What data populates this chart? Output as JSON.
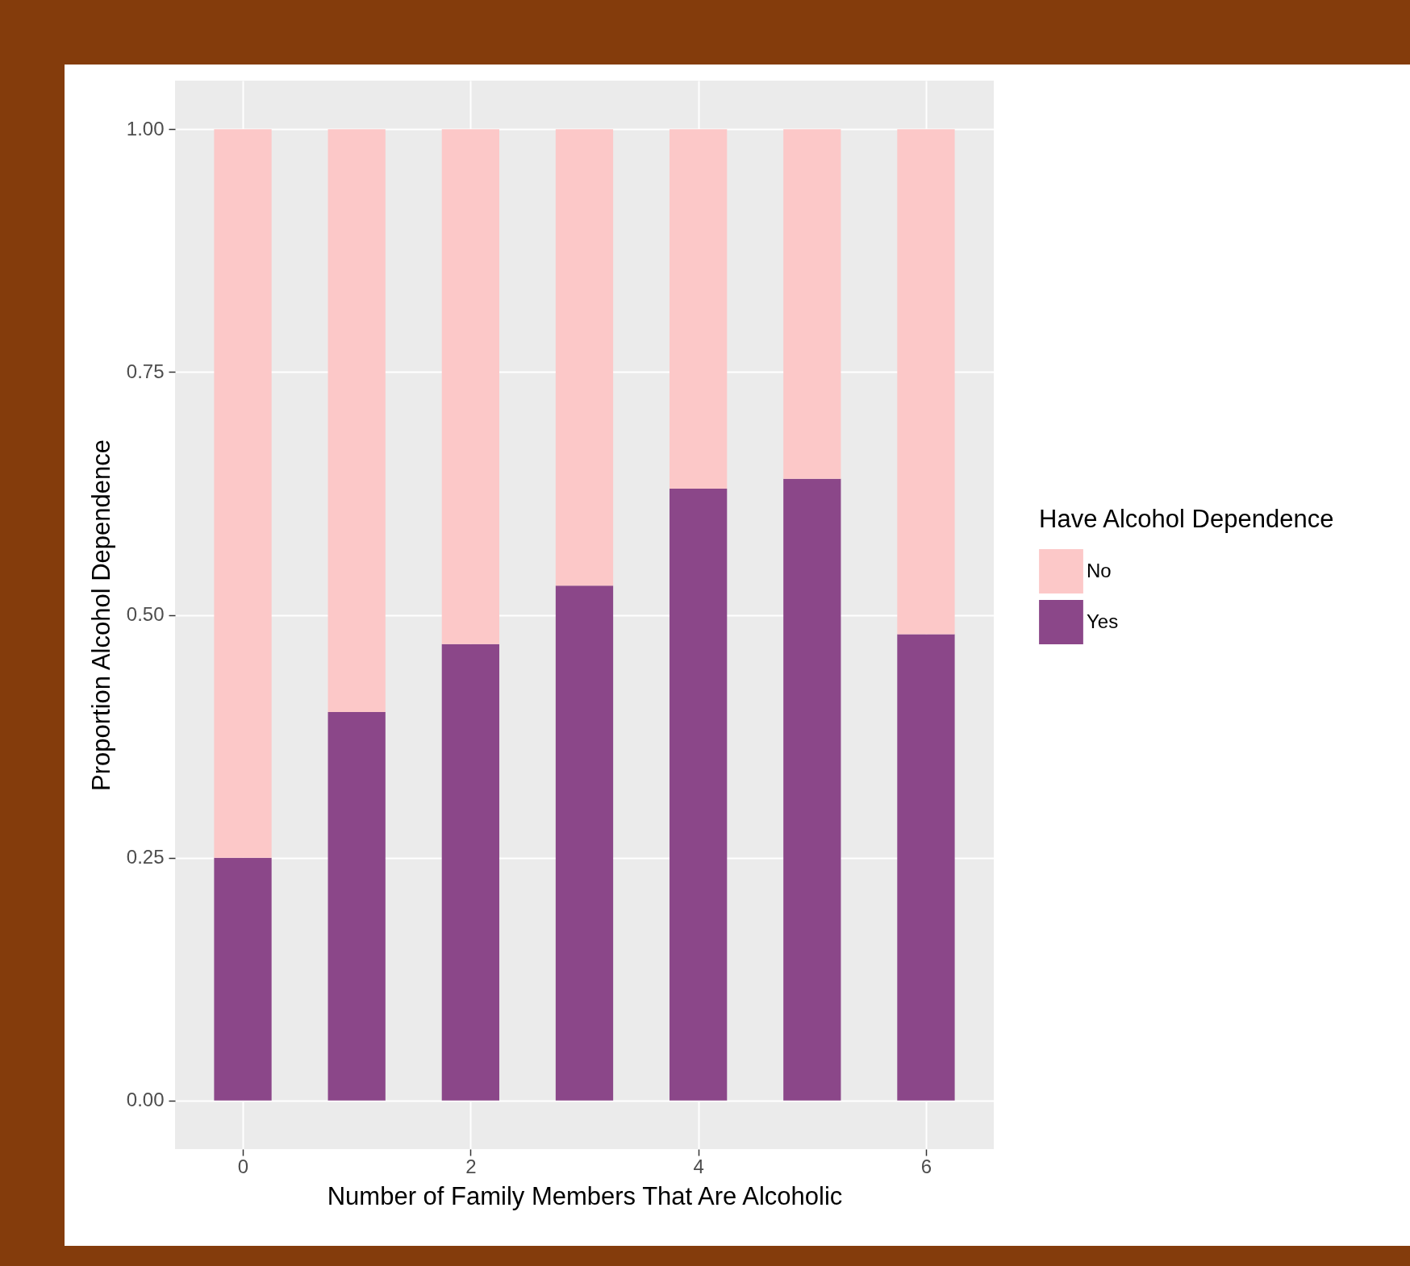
{
  "chart_data": {
    "type": "bar",
    "stacked": true,
    "xlabel": "Number of Family Members That Are Alcoholic",
    "ylabel": "Proportion Alcohol Dependence",
    "legend_title": "Have Alcohol Dependence",
    "x": [
      0,
      1,
      2,
      3,
      4,
      5,
      6
    ],
    "series": [
      {
        "name": "Yes",
        "color": "#8b4789",
        "values": [
          0.25,
          0.4,
          0.47,
          0.53,
          0.63,
          0.64,
          0.48
        ]
      },
      {
        "name": "No",
        "color": "#fcc8c8",
        "values": [
          0.75,
          0.6,
          0.53,
          0.47,
          0.37,
          0.36,
          0.52
        ]
      }
    ],
    "xlim": [
      -0.56,
      6.56
    ],
    "xticks": [
      0,
      2,
      4,
      6
    ],
    "ylim": [
      -0.05,
      1.05
    ],
    "yticks": [
      {
        "value": 0,
        "label": "0.00"
      },
      {
        "value": 0.25,
        "label": "0.25"
      },
      {
        "value": 0.5,
        "label": "0.50"
      },
      {
        "value": 0.75,
        "label": "0.75"
      },
      {
        "value": 1,
        "label": "1.00"
      }
    ],
    "grid": true,
    "legend": "right"
  }
}
